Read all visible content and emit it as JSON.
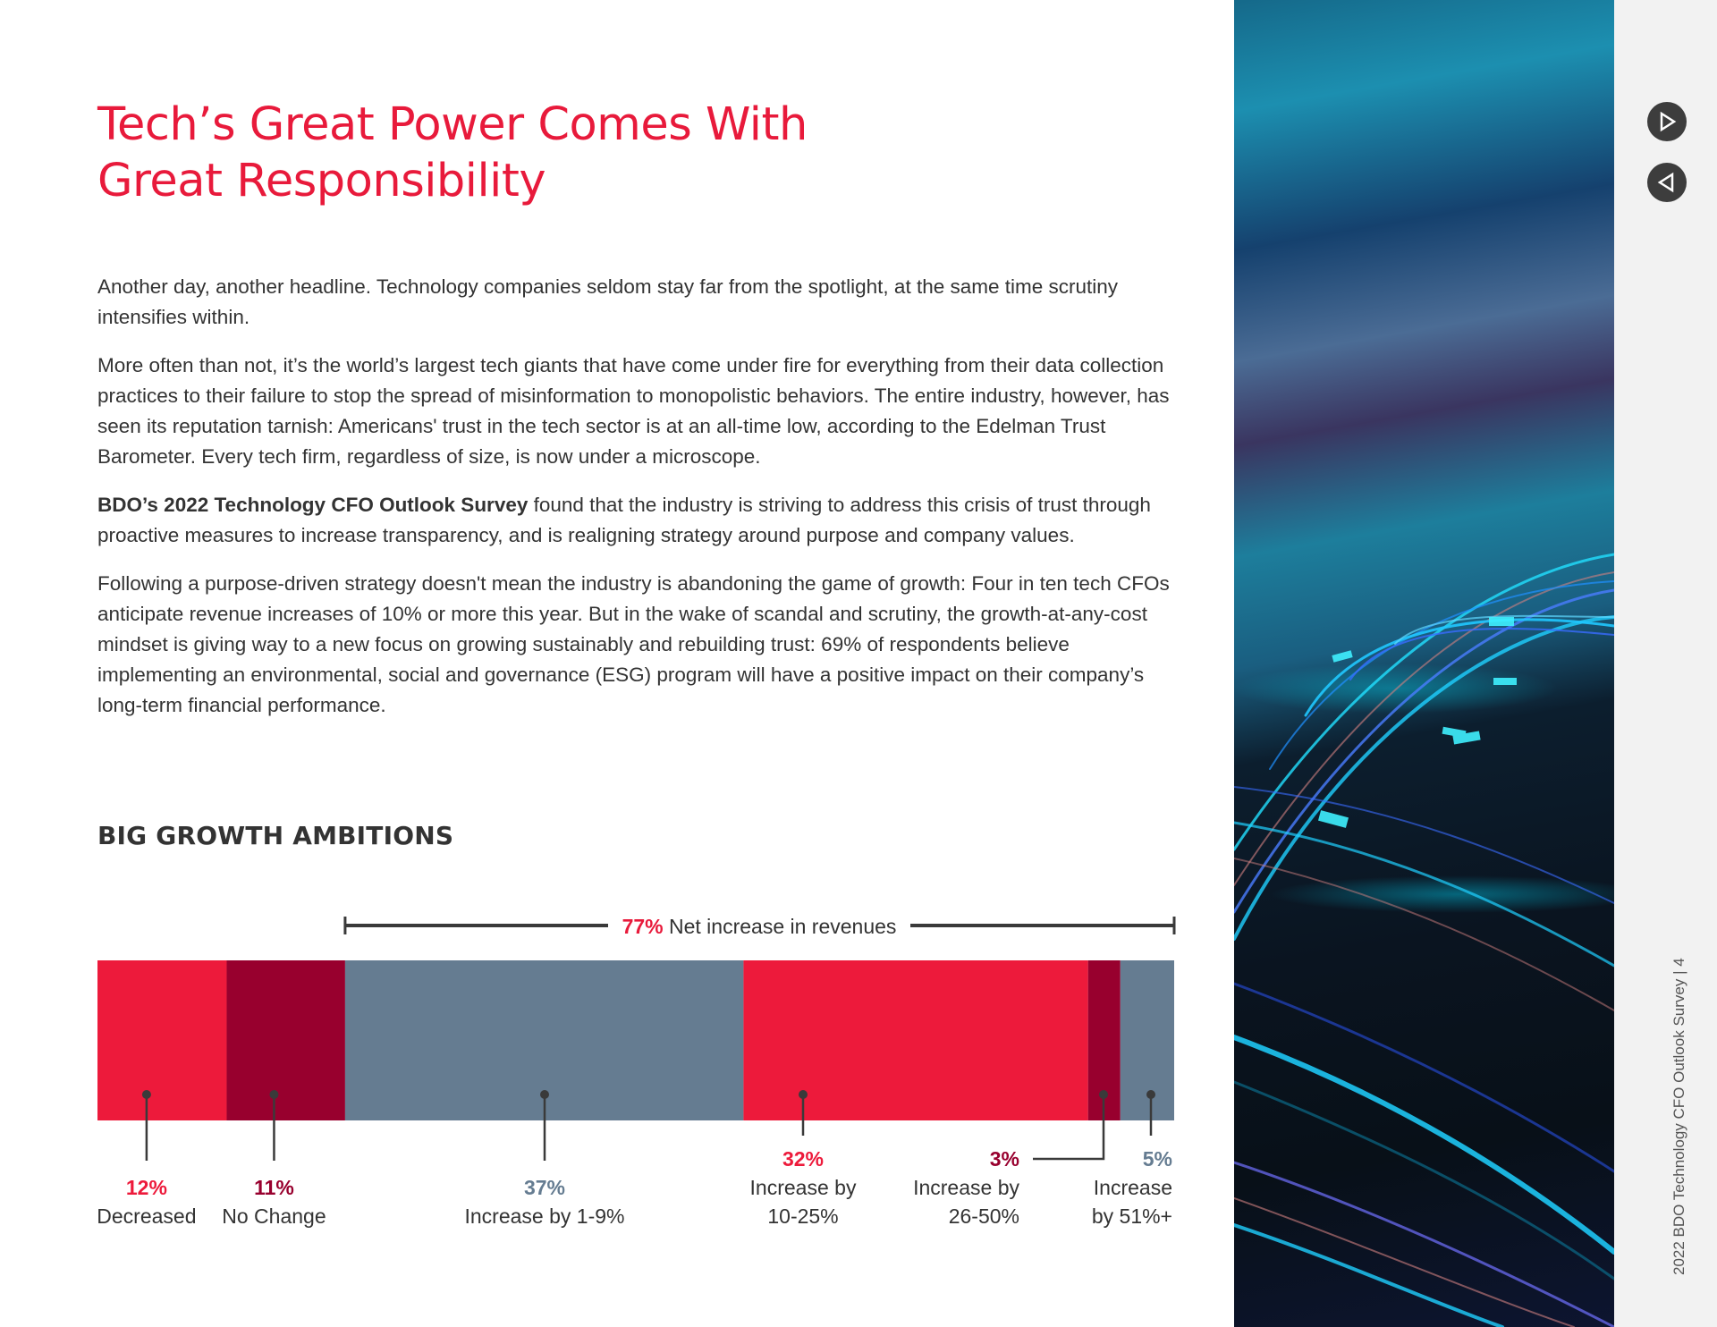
{
  "page": {
    "title_lines": [
      "Tech’s Great Power Comes With",
      "Great Responsibility"
    ],
    "paragraphs": [
      {
        "bold": "",
        "text": "Another day, another headline. Technology companies seldom stay far from the spotlight, at the same time scrutiny intensifies within."
      },
      {
        "bold": "",
        "text": "More often than not, it’s the world’s largest tech giants that have come under fire for everything from their data collection practices to their failure to stop the spread of misinformation to monopolistic behaviors. The entire industry, however, has seen its reputation tarnish: Americans' trust in the tech sector is at an all-time low, according to the Edelman Trust Barometer. Every tech firm, regardless of size, is now under a microscope."
      },
      {
        "bold": "BDO’s 2022 Technology CFO Outlook Survey",
        "text": " found that the industry is striving to address this crisis of trust through proactive measures to increase transparency, and is realigning strategy around purpose and company values."
      },
      {
        "bold": "",
        "text": "Following a purpose-driven strategy doesn't mean the industry is abandoning the game of growth: Four in ten tech CFOs anticipate revenue increases of 10% or more this year. But in the wake of scandal and scrutiny, the growth-at-any-cost mindset is giving way to a new focus on growing sustainably and rebuilding trust: 69% of respondents believe implementing an environmental, social and governance (ESG) program will have a positive impact on their company’s long-term financial performance."
      }
    ],
    "chart_heading": "BIG GROWTH AMBITIONS"
  },
  "chart_data": {
    "type": "bar",
    "subtype": "stacked-100-horizontal",
    "title": "BIG GROWTH AMBITIONS",
    "categories": [
      "Decreased",
      "No Change",
      "Increase by 1-9%",
      "Increase by 10-25%",
      "Increase by 26-50%",
      "Increase by 51%+"
    ],
    "label_lines": [
      [
        "Decreased"
      ],
      [
        "No Change"
      ],
      [
        "Increase by 1-9%"
      ],
      [
        "Increase by",
        "10-25%"
      ],
      [
        "Increase by",
        "26-50%"
      ],
      [
        "Increase",
        "by 51%+"
      ]
    ],
    "values": [
      12,
      11,
      37,
      32,
      3,
      5
    ],
    "value_labels": [
      "12%",
      "11%",
      "37%",
      "32%",
      "3%",
      "5%"
    ],
    "colors": [
      "#ed1a3b",
      "#98002e",
      "#657c91",
      "#ed1a3b",
      "#98002e",
      "#657c91"
    ],
    "annotation": {
      "value": "77%",
      "text": "Net increase in revenues",
      "spans_categories": [
        2,
        5
      ]
    },
    "xlim": [
      0,
      100
    ]
  },
  "colors": {
    "brand_red": "#e81a3b",
    "dark_red": "#98002e",
    "slate": "#657c91",
    "text": "#333333"
  },
  "navigation": {
    "next_icon": "play-forward-icon",
    "prev_icon": "play-back-icon"
  },
  "footer": {
    "text": "2022 BDO Technology CFO Outlook Survey | 4"
  }
}
